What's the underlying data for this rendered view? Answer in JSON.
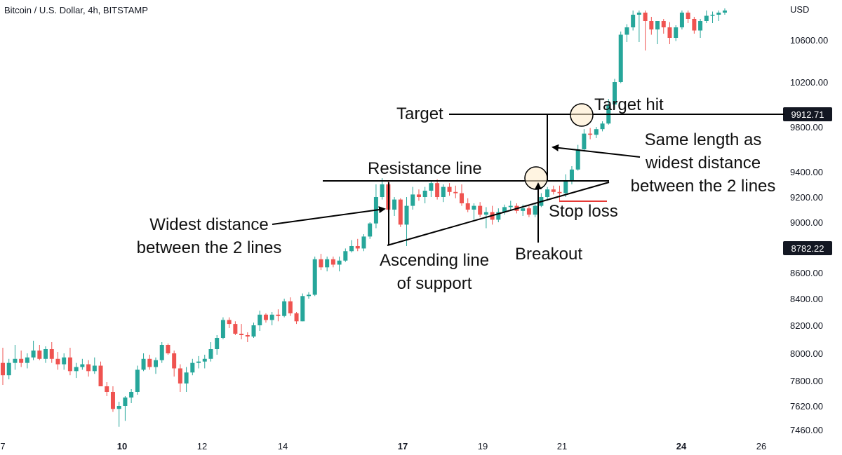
{
  "header": {
    "symbol_title": "Bitcoin / U.S. Dollar, 4h, BITSTAMP"
  },
  "axis": {
    "currency_label": "USD",
    "price_ticks": [
      10600,
      10200,
      9800,
      9400,
      9200,
      9000,
      8600,
      8400,
      8200,
      8000,
      7800,
      7620,
      7460
    ],
    "price_tick_labels": [
      "10600.00",
      "10200.00",
      "9800.00",
      "9400.00",
      "9200.00",
      "9000.00",
      "8600.00",
      "8400.00",
      "8200.00",
      "8000.00",
      "7800.00",
      "7620.00",
      "7460.00"
    ],
    "time_ticks": [
      "7",
      "10",
      "12",
      "14",
      "17",
      "19",
      "21",
      "24",
      "26"
    ],
    "time_ticks_bold": [
      "10",
      "17",
      "24"
    ]
  },
  "badges": [
    {
      "label": "9912.71",
      "price": 9912.71
    },
    {
      "label": "8782.22",
      "price": 8782.22
    }
  ],
  "annotations": {
    "target": "Target",
    "target_hit": "Target hit",
    "same_length_1": "Same length as",
    "same_length_2": "widest distance",
    "same_length_3": "between the 2 lines",
    "resistance": "Resistance line",
    "stop_loss": "Stop loss",
    "widest_1": "Widest distance",
    "widest_2": "between the 2 lines",
    "ascending_1": "Ascending line",
    "ascending_2": "of support",
    "breakout": "Breakout"
  },
  "colors": {
    "up": "#26a69a",
    "down": "#ef5350",
    "line": "#000000",
    "stop": "#e53935",
    "badge_bg": "#131722",
    "badge_text": "#ffffff"
  },
  "chart_data": {
    "type": "candlestick",
    "interval": "4h",
    "y_range": [
      7400,
      10900
    ],
    "ohlc_fields": [
      "open",
      "high",
      "low",
      "close"
    ],
    "candles": [
      [
        7930,
        8040,
        7770,
        7840
      ],
      [
        7840,
        7960,
        7810,
        7930
      ],
      [
        7930,
        8060,
        7880,
        7960
      ],
      [
        7960,
        8020,
        7900,
        7930
      ],
      [
        7930,
        8000,
        7890,
        7970
      ],
      [
        7970,
        8090,
        7950,
        8020
      ],
      [
        8020,
        8060,
        7950,
        7960
      ],
      [
        7960,
        8050,
        7930,
        8030
      ],
      [
        8030,
        8080,
        7930,
        7960
      ],
      [
        7960,
        8010,
        7880,
        7920
      ],
      [
        7920,
        8000,
        7880,
        7970
      ],
      [
        7970,
        8040,
        7840,
        7870
      ],
      [
        7870,
        7930,
        7820,
        7900
      ],
      [
        7900,
        7960,
        7880,
        7920
      ],
      [
        7920,
        7950,
        7830,
        7870
      ],
      [
        7870,
        7970,
        7850,
        7910
      ],
      [
        7910,
        7940,
        7760,
        7760
      ],
      [
        7760,
        7790,
        7690,
        7720
      ],
      [
        7720,
        7760,
        7580,
        7600
      ],
      [
        7600,
        7650,
        7480,
        7620
      ],
      [
        7620,
        7690,
        7520,
        7680
      ],
      [
        7680,
        7740,
        7640,
        7720
      ],
      [
        7720,
        7910,
        7700,
        7880
      ],
      [
        7880,
        8000,
        7870,
        7960
      ],
      [
        7960,
        7990,
        7880,
        7900
      ],
      [
        7900,
        7970,
        7850,
        7950
      ],
      [
        7950,
        8080,
        7930,
        8060
      ],
      [
        8060,
        8070,
        7990,
        8000
      ],
      [
        8000,
        8020,
        7830,
        7890
      ],
      [
        7890,
        7920,
        7720,
        7780
      ],
      [
        7780,
        7900,
        7720,
        7860
      ],
      [
        7860,
        7960,
        7840,
        7930
      ],
      [
        7930,
        7980,
        7890,
        7940
      ],
      [
        7940,
        7990,
        7890,
        7960
      ],
      [
        7960,
        8080,
        7940,
        8030
      ],
      [
        8030,
        8130,
        7990,
        8110
      ],
      [
        8110,
        8260,
        8100,
        8240
      ],
      [
        8240,
        8260,
        8180,
        8210
      ],
      [
        8210,
        8230,
        8130,
        8140
      ],
      [
        8140,
        8210,
        8100,
        8130
      ],
      [
        8130,
        8150,
        8080,
        8120
      ],
      [
        8120,
        8220,
        8110,
        8200
      ],
      [
        8200,
        8310,
        8160,
        8280
      ],
      [
        8280,
        8290,
        8220,
        8240
      ],
      [
        8240,
        8300,
        8200,
        8280
      ],
      [
        8280,
        8320,
        8230,
        8270
      ],
      [
        8270,
        8400,
        8260,
        8380
      ],
      [
        8380,
        8410,
        8270,
        8290
      ],
      [
        8290,
        8300,
        8210,
        8230
      ],
      [
        8230,
        8440,
        8230,
        8420
      ],
      [
        8420,
        8450,
        8400,
        8430
      ],
      [
        8430,
        8720,
        8420,
        8700
      ],
      [
        8700,
        8740,
        8620,
        8640
      ],
      [
        8640,
        8720,
        8610,
        8700
      ],
      [
        8700,
        8720,
        8640,
        8660
      ],
      [
        8660,
        8720,
        8610,
        8690
      ],
      [
        8690,
        8780,
        8680,
        8760
      ],
      [
        8760,
        8850,
        8750,
        8800
      ],
      [
        8800,
        8860,
        8760,
        8780
      ],
      [
        8780,
        8900,
        8760,
        8880
      ],
      [
        8880,
        9000,
        8860,
        8990
      ],
      [
        8990,
        9300,
        8950,
        9200
      ],
      [
        9200,
        9350,
        9180,
        9300
      ],
      [
        9300,
        9330,
        9080,
        9100
      ],
      [
        9100,
        9200,
        9050,
        9180
      ],
      [
        9180,
        9190,
        8960,
        8980
      ],
      [
        8980,
        9200,
        8800,
        9130
      ],
      [
        9130,
        9280,
        9100,
        9220
      ],
      [
        9220,
        9260,
        9170,
        9200
      ],
      [
        9200,
        9280,
        9150,
        9250
      ],
      [
        9250,
        9330,
        9200,
        9310
      ],
      [
        9310,
        9340,
        9180,
        9200
      ],
      [
        9200,
        9300,
        9160,
        9280
      ],
      [
        9280,
        9310,
        9210,
        9240
      ],
      [
        9240,
        9290,
        9190,
        9230
      ],
      [
        9230,
        9300,
        9130,
        9150
      ],
      [
        9150,
        9190,
        9080,
        9100
      ],
      [
        9100,
        9150,
        9020,
        9130
      ],
      [
        9130,
        9160,
        9040,
        9060
      ],
      [
        9060,
        9120,
        8950,
        9080
      ],
      [
        9080,
        9130,
        8980,
        9020
      ],
      [
        9020,
        9110,
        9000,
        9080
      ],
      [
        9080,
        9140,
        9060,
        9120
      ],
      [
        9120,
        9170,
        9090,
        9130
      ],
      [
        9130,
        9150,
        9070,
        9090
      ],
      [
        9090,
        9140,
        9050,
        9110
      ],
      [
        9110,
        9130,
        9040,
        9060
      ],
      [
        9060,
        9150,
        9040,
        9130
      ],
      [
        9130,
        9230,
        9120,
        9200
      ],
      [
        9200,
        9280,
        9170,
        9260
      ],
      [
        9260,
        9290,
        9220,
        9240
      ],
      [
        9240,
        9290,
        9160,
        9230
      ],
      [
        9230,
        9380,
        9200,
        9330
      ],
      [
        9330,
        9450,
        9300,
        9420
      ],
      [
        9420,
        9640,
        9410,
        9600
      ],
      [
        9600,
        9780,
        9580,
        9740
      ],
      [
        9740,
        9790,
        9690,
        9730
      ],
      [
        9730,
        9800,
        9700,
        9780
      ],
      [
        9780,
        9850,
        9760,
        9830
      ],
      [
        9830,
        10050,
        9820,
        10000
      ],
      [
        10000,
        10230,
        9960,
        10200
      ],
      [
        10200,
        10680,
        10190,
        10650
      ],
      [
        10650,
        10750,
        10580,
        10720
      ],
      [
        10720,
        10880,
        10690,
        10840
      ],
      [
        10840,
        10880,
        10580,
        10860
      ],
      [
        10860,
        10880,
        10500,
        10780
      ],
      [
        10780,
        10820,
        10650,
        10700
      ],
      [
        10700,
        10780,
        10560,
        10780
      ],
      [
        10780,
        10800,
        10660,
        10720
      ],
      [
        10720,
        10770,
        10560,
        10620
      ],
      [
        10620,
        10740,
        10590,
        10720
      ],
      [
        10720,
        10880,
        10700,
        10860
      ],
      [
        10860,
        10880,
        10760,
        10800
      ],
      [
        10800,
        10820,
        10660,
        10690
      ],
      [
        10690,
        10800,
        10620,
        10780
      ],
      [
        10780,
        10880,
        10760,
        10830
      ],
      [
        10830,
        10870,
        10760,
        10840
      ],
      [
        10840,
        10880,
        10780,
        10860
      ],
      [
        10860,
        10900,
        10840,
        10880
      ]
    ],
    "levels": {
      "resistance": 9330,
      "target": 9912.71,
      "current": 8782.22,
      "stop_loss": 9170
    }
  }
}
